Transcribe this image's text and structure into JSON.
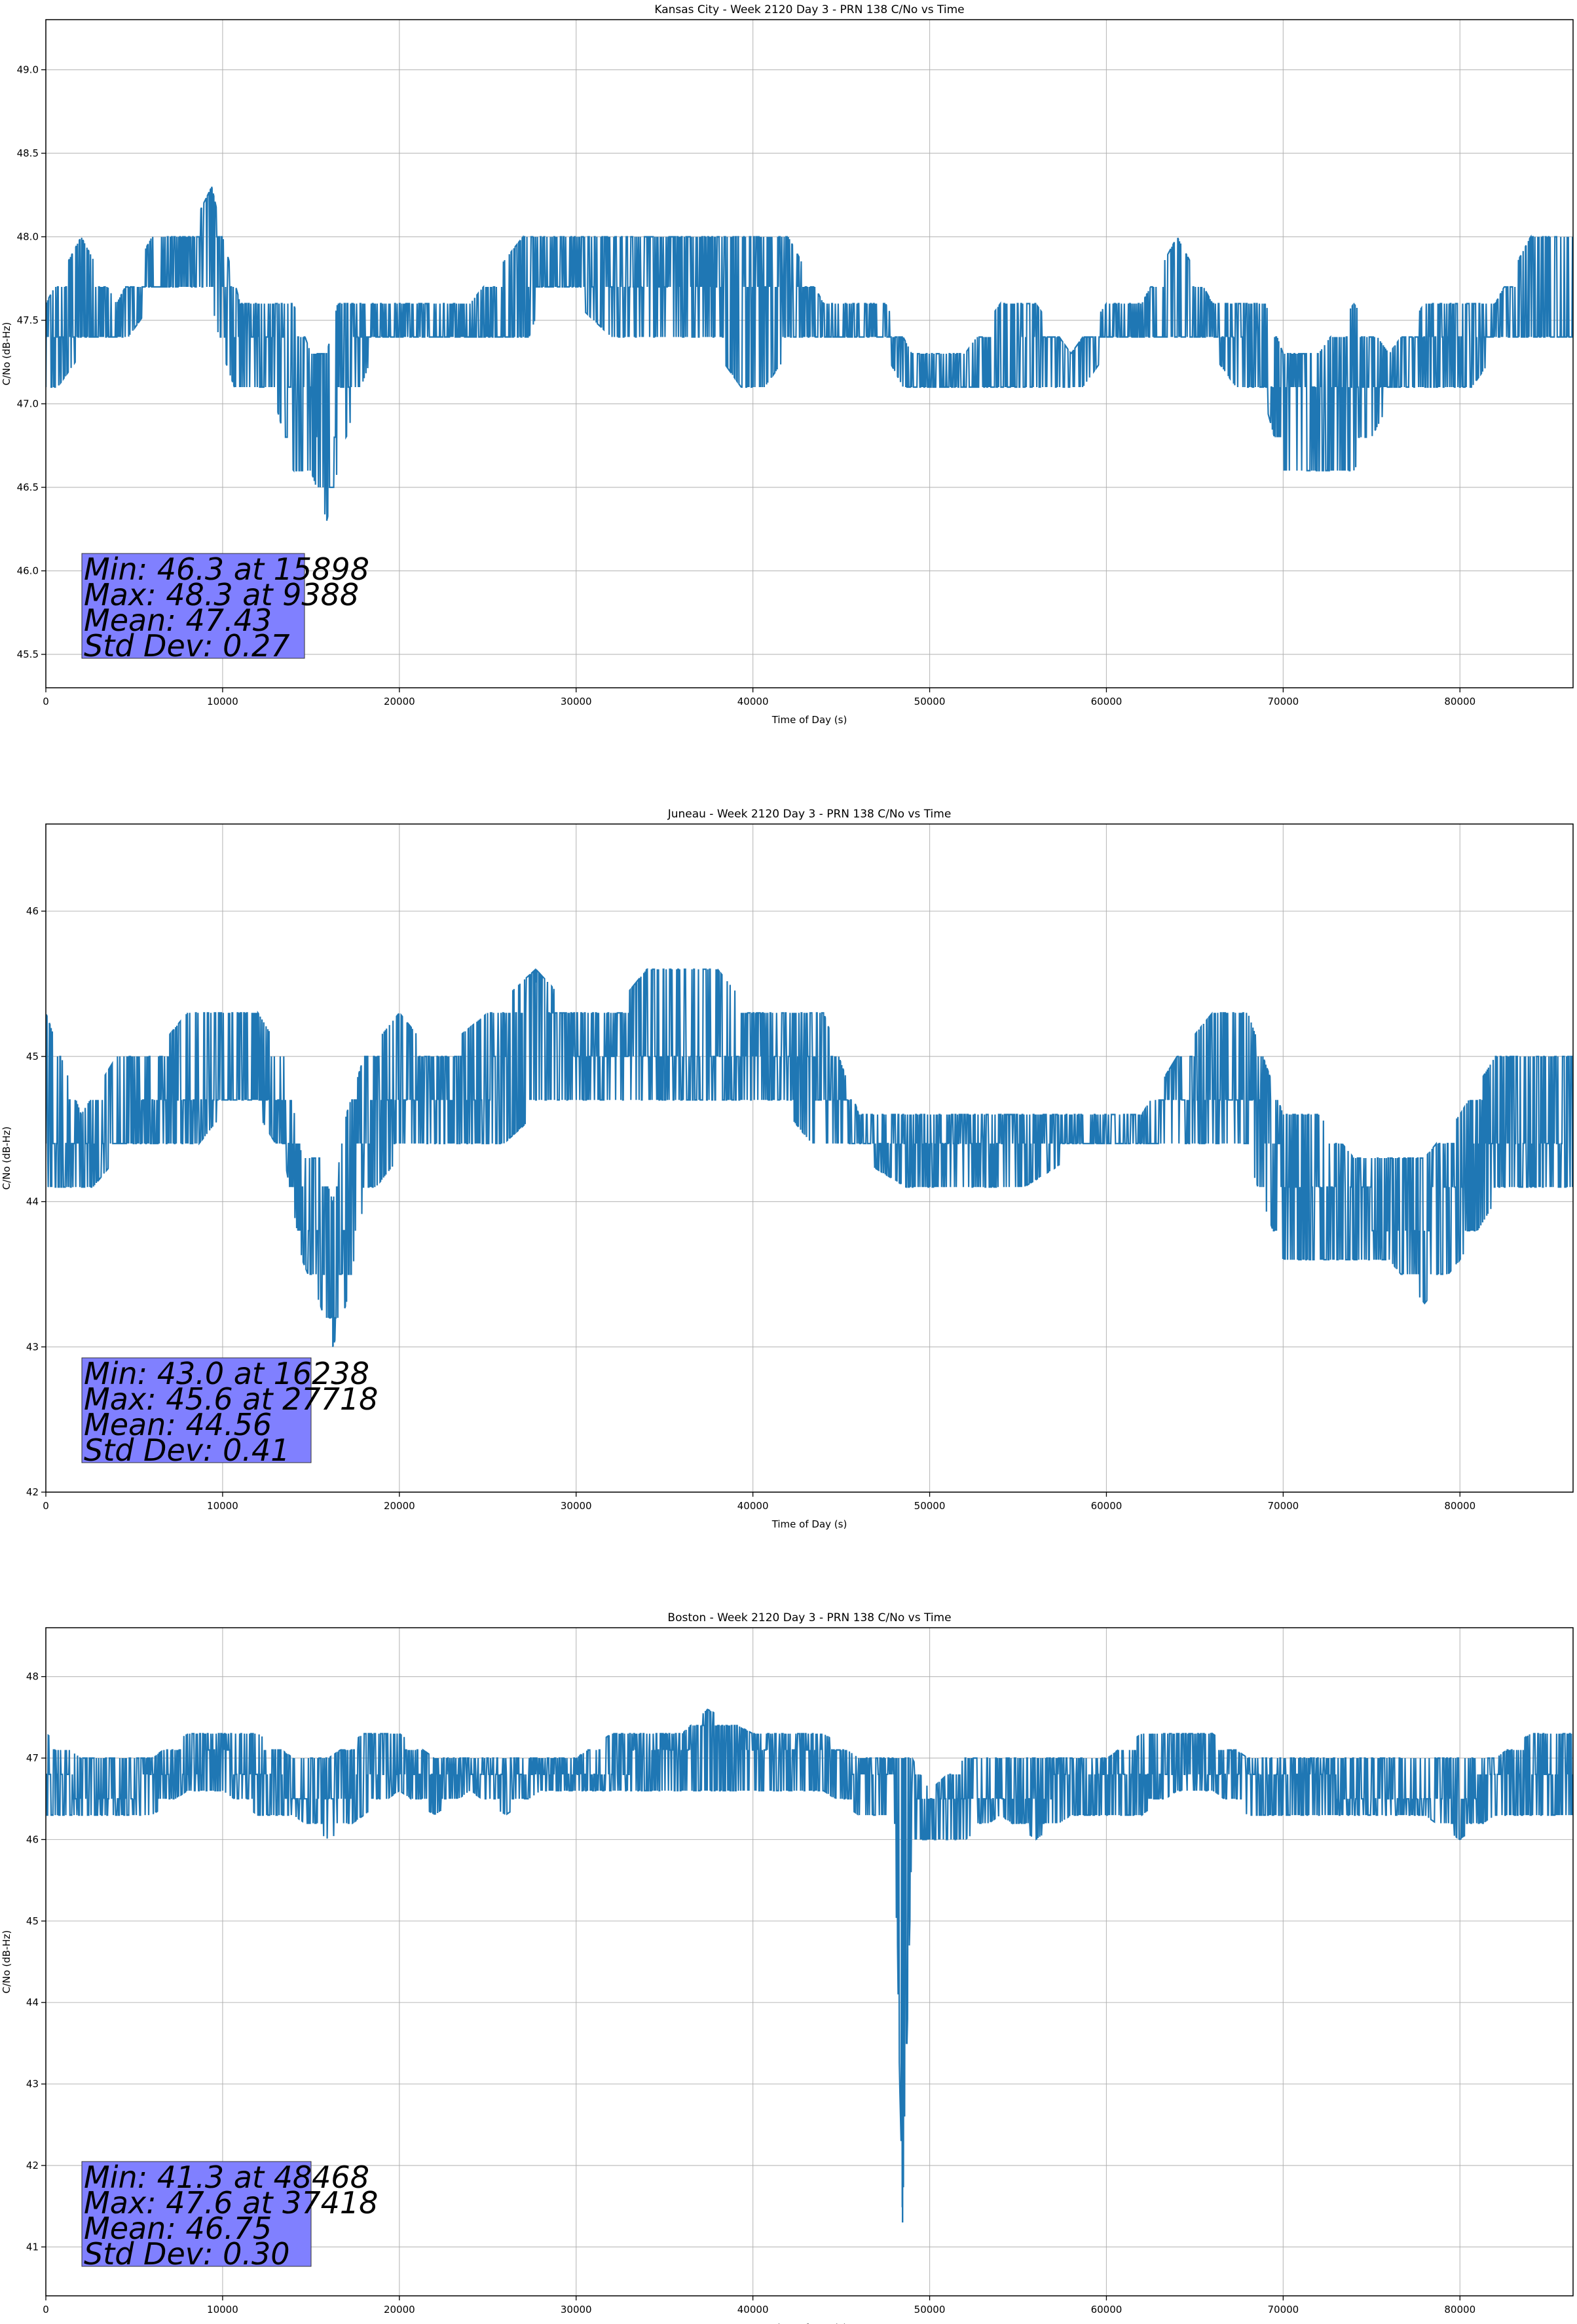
{
  "chart_data": [
    {
      "type": "line",
      "title": "Kansas City - Week 2120 Day 3 - PRN 138 C/No vs Time",
      "xlabel": "Time of Day (s)",
      "ylabel": "C/No (dB-Hz)",
      "xlim": [
        0,
        86400
      ],
      "ylim": [
        45.3,
        49.3
      ],
      "xticks": [
        0,
        10000,
        20000,
        30000,
        40000,
        50000,
        60000,
        70000,
        80000
      ],
      "xtick_labels": [
        "0",
        "10000",
        "20000",
        "30000",
        "40000",
        "50000",
        "60000",
        "70000",
        "80000"
      ],
      "yticks": [
        45.5,
        46.0,
        46.5,
        47.0,
        47.5,
        48.0,
        48.5,
        49.0
      ],
      "ytick_labels": [
        "45.5",
        "46.0",
        "46.5",
        "47.0",
        "47.5",
        "48.0",
        "48.5",
        "49.0"
      ],
      "grid": true,
      "color": "#1f77b4",
      "series": [
        {
          "x": [
            0,
            2000,
            4000,
            6000,
            8000,
            9388,
            10000,
            11000,
            13000,
            14000,
            15000,
            15898,
            16500,
            17500,
            18500,
            20000,
            24000,
            27000,
            28000,
            30000,
            33000,
            36000,
            38000,
            40000,
            42000,
            44000,
            46000,
            47500,
            49000,
            52000,
            54000,
            56000,
            58000,
            60000,
            62000,
            64000,
            66000,
            68000,
            69000,
            70000,
            72000,
            74000,
            76000,
            78000,
            80000,
            82000,
            84000,
            86400
          ],
          "y": [
            47.4,
            47.5,
            47.5,
            47.8,
            47.8,
            48.3,
            47.8,
            47.4,
            47.4,
            47.1,
            47.0,
            46.3,
            47.0,
            47.3,
            47.4,
            47.4,
            47.4,
            47.5,
            47.8,
            47.8,
            47.8,
            47.8,
            47.6,
            47.8,
            47.6,
            47.5,
            47.4,
            47.4,
            47.2,
            47.2,
            47.2,
            47.3,
            47.3,
            47.4,
            47.4,
            47.5,
            47.4,
            47.4,
            47.2,
            47.2,
            47.2,
            47.2,
            47.2,
            47.3,
            47.4,
            47.4,
            47.5,
            47.5
          ],
          "band_low": [
            47.0,
            47.3,
            47.3,
            47.6,
            47.6,
            47.6,
            47.3,
            47.0,
            47.0,
            46.6,
            46.6,
            46.3,
            46.6,
            47.0,
            47.3,
            47.3,
            47.3,
            47.3,
            47.6,
            47.6,
            47.3,
            47.3,
            47.3,
            47.0,
            47.3,
            47.3,
            47.3,
            47.3,
            47.0,
            47.0,
            47.0,
            47.0,
            47.0,
            47.3,
            47.3,
            47.3,
            47.3,
            47.0,
            47.0,
            46.6,
            46.6,
            46.6,
            47.0,
            47.0,
            47.0,
            47.3,
            47.3,
            47.3
          ],
          "band_high": [
            47.6,
            48.0,
            47.6,
            48.0,
            48.0,
            48.3,
            48.0,
            47.6,
            47.6,
            47.6,
            47.3,
            47.3,
            47.6,
            47.6,
            47.6,
            47.6,
            47.6,
            48.0,
            48.0,
            48.0,
            48.0,
            48.0,
            48.0,
            48.0,
            48.0,
            47.6,
            47.6,
            47.6,
            47.3,
            47.3,
            47.6,
            47.6,
            47.3,
            47.6,
            47.6,
            48.0,
            47.6,
            47.6,
            47.6,
            47.3,
            47.3,
            47.6,
            47.3,
            47.6,
            47.6,
            47.6,
            48.0,
            48.0
          ]
        }
      ],
      "stats": [
        "Min: 46.3 at 15898",
        "Max: 48.3 at 9388",
        "Mean: 47.43",
        "Std Dev: 0.27"
      ]
    },
    {
      "type": "line",
      "title": "Juneau - Week 2120 Day 3 - PRN 138 C/No vs Time",
      "xlabel": "Time of Day (s)",
      "ylabel": "C/No (dB-Hz)",
      "xlim": [
        0,
        86400
      ],
      "ylim": [
        42.0,
        46.6
      ],
      "xticks": [
        0,
        10000,
        20000,
        30000,
        40000,
        50000,
        60000,
        70000,
        80000
      ],
      "xtick_labels": [
        "0",
        "10000",
        "20000",
        "30000",
        "40000",
        "50000",
        "60000",
        "70000",
        "80000"
      ],
      "yticks": [
        42,
        43,
        44,
        45,
        46
      ],
      "ytick_labels": [
        "42",
        "43",
        "44",
        "45",
        "46"
      ],
      "grid": true,
      "color": "#1f77b4",
      "series": [
        {
          "x": [
            0,
            2000,
            4000,
            6000,
            8000,
            10000,
            12000,
            13500,
            14500,
            15500,
            16238,
            17000,
            18000,
            20000,
            22000,
            25000,
            27718,
            30000,
            32000,
            34000,
            36000,
            38000,
            40000,
            42000,
            44000,
            46000,
            50000,
            54000,
            58000,
            62000,
            64000,
            66000,
            68000,
            70000,
            72000,
            74000,
            76000,
            78000,
            80000,
            82000,
            84000,
            86400
          ],
          "y": [
            44.4,
            44.5,
            44.5,
            44.6,
            44.7,
            44.8,
            44.8,
            44.6,
            44.0,
            43.8,
            43.0,
            43.9,
            44.5,
            44.8,
            44.8,
            44.8,
            45.6,
            44.9,
            45.0,
            45.1,
            45.1,
            45.1,
            45.1,
            45.0,
            44.8,
            44.5,
            44.5,
            44.5,
            44.5,
            44.5,
            44.6,
            44.8,
            44.8,
            44.2,
            44.2,
            44.0,
            43.9,
            43.9,
            44.2,
            44.4,
            44.5,
            44.5
          ],
          "band_low": [
            44.0,
            44.0,
            44.3,
            44.3,
            44.3,
            44.6,
            44.6,
            44.3,
            43.6,
            43.3,
            43.0,
            43.3,
            44.0,
            44.3,
            44.3,
            44.3,
            44.6,
            44.6,
            44.6,
            44.6,
            44.6,
            44.6,
            44.6,
            44.6,
            44.3,
            44.3,
            44.0,
            44.0,
            44.3,
            44.3,
            44.3,
            44.3,
            44.3,
            43.6,
            43.6,
            43.6,
            43.6,
            43.3,
            43.6,
            44.0,
            44.0,
            44.0
          ],
          "band_high": [
            45.3,
            44.6,
            45.0,
            45.0,
            45.3,
            45.3,
            45.3,
            45.0,
            44.3,
            44.3,
            44.0,
            44.6,
            45.0,
            45.3,
            45.0,
            45.3,
            45.6,
            45.3,
            45.3,
            45.6,
            45.6,
            45.6,
            45.3,
            45.3,
            45.3,
            44.6,
            44.6,
            44.6,
            44.6,
            44.6,
            45.0,
            45.3,
            45.3,
            44.6,
            44.6,
            44.3,
            44.3,
            44.3,
            44.6,
            45.0,
            45.0,
            45.0
          ]
        }
      ],
      "stats": [
        "Min: 43.0 at 16238",
        "Max: 45.6 at 27718",
        "Mean: 44.56",
        "Std Dev: 0.41"
      ]
    },
    {
      "type": "line",
      "title": "Boston - Week 2120 Day 3 - PRN 138 C/No vs Time",
      "xlabel": "Time of Day (s)",
      "ylabel": "C/No (dB-Hz)",
      "xlim": [
        0,
        86400
      ],
      "ylim": [
        40.4,
        48.6
      ],
      "xticks": [
        0,
        10000,
        20000,
        30000,
        40000,
        50000,
        60000,
        70000,
        80000
      ],
      "xtick_labels": [
        "0",
        "10000",
        "20000",
        "30000",
        "40000",
        "50000",
        "60000",
        "70000",
        "80000"
      ],
      "yticks": [
        41,
        42,
        43,
        44,
        45,
        46,
        47,
        48
      ],
      "ytick_labels": [
        "41",
        "42",
        "43",
        "44",
        "45",
        "46",
        "47",
        "48"
      ],
      "grid": true,
      "color": "#1f77b4",
      "series": [
        {
          "x": [
            0,
            2000,
            4000,
            6000,
            8000,
            10000,
            12000,
            14000,
            16000,
            18000,
            20000,
            22000,
            24000,
            26000,
            28000,
            30000,
            32000,
            34000,
            36000,
            37418,
            40000,
            42000,
            44000,
            46000,
            48000,
            48468,
            49000,
            50000,
            52000,
            54000,
            56000,
            58000,
            60000,
            62000,
            64000,
            66000,
            68000,
            70000,
            72000,
            74000,
            76000,
            78000,
            80000,
            82000,
            84000,
            86400
          ],
          "y": [
            46.8,
            46.6,
            46.5,
            46.7,
            46.9,
            47.0,
            46.8,
            46.6,
            46.4,
            46.8,
            46.9,
            46.9,
            46.8,
            46.7,
            46.8,
            46.8,
            46.9,
            47.0,
            47.0,
            47.6,
            47.0,
            47.1,
            47.0,
            46.9,
            46.8,
            41.3,
            46.7,
            46.5,
            46.5,
            46.6,
            46.6,
            46.7,
            46.7,
            46.8,
            46.8,
            46.9,
            46.8,
            46.7,
            46.7,
            46.6,
            46.6,
            46.6,
            46.6,
            46.7,
            46.8,
            46.8
          ],
          "band_low": [
            46.3,
            46.3,
            46.3,
            46.3,
            46.6,
            46.6,
            46.3,
            46.3,
            46.0,
            46.3,
            46.6,
            46.3,
            46.6,
            46.3,
            46.6,
            46.6,
            46.6,
            46.6,
            46.6,
            46.6,
            46.6,
            46.6,
            46.6,
            46.3,
            46.3,
            41.3,
            46.0,
            46.0,
            46.0,
            46.3,
            46.0,
            46.3,
            46.3,
            46.3,
            46.6,
            46.6,
            46.3,
            46.3,
            46.3,
            46.3,
            46.3,
            46.3,
            46.0,
            46.3,
            46.3,
            46.3
          ],
          "band_high": [
            47.3,
            47.0,
            47.0,
            47.0,
            47.3,
            47.3,
            47.3,
            47.0,
            47.0,
            47.3,
            47.3,
            47.0,
            47.0,
            47.0,
            47.0,
            47.0,
            47.3,
            47.3,
            47.3,
            47.6,
            47.3,
            47.3,
            47.3,
            47.0,
            47.0,
            47.0,
            47.0,
            46.6,
            47.0,
            47.0,
            47.0,
            47.0,
            47.0,
            47.3,
            47.3,
            47.3,
            47.0,
            47.0,
            47.0,
            47.0,
            47.0,
            47.0,
            47.0,
            47.0,
            47.3,
            47.3
          ]
        }
      ],
      "stats": [
        "Min: 41.3 at 48468",
        "Max: 47.6 at 37418",
        "Mean: 46.75",
        "Std Dev: 0.30"
      ]
    }
  ]
}
